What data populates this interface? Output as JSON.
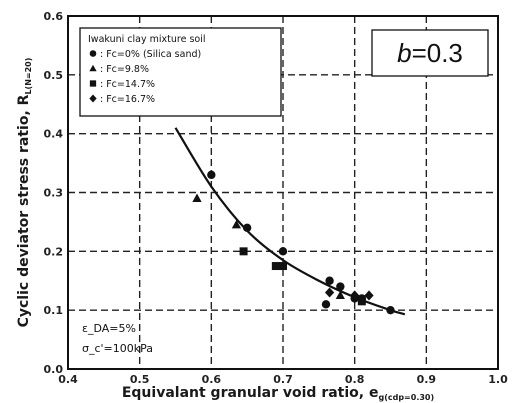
{
  "chart_data": {
    "type": "scatter",
    "xlabel": "Equivalant granular void ratio, e",
    "xlabel_sub": "g(cdp=0.30)",
    "ylabel": "Cyclic deviator stress ratio, R",
    "ylabel_sub": "L(N=20)",
    "xlim": [
      0.4,
      1.0
    ],
    "ylim": [
      0.0,
      0.6
    ],
    "x_ticks": [
      "0.4",
      "0.5",
      "0.6",
      "0.7",
      "0.8",
      "0.9",
      "1.0"
    ],
    "y_ticks": [
      "0.0",
      "0.1",
      "0.2",
      "0.3",
      "0.4",
      "0.5",
      "0.6"
    ],
    "grid": true,
    "legend_position": "top-left",
    "legend_title": "Iwakuni clay mixture soil",
    "annotation": "b=0.3",
    "conditions": [
      "ε_DA=5%",
      "σ_c'=100kPa"
    ],
    "series": [
      {
        "name": ": Fc=0% (Silica sand)",
        "marker": "circle",
        "points": [
          [
            0.6,
            0.33
          ],
          [
            0.65,
            0.24
          ],
          [
            0.7,
            0.2
          ],
          [
            0.76,
            0.11
          ],
          [
            0.765,
            0.15
          ],
          [
            0.78,
            0.14
          ],
          [
            0.8,
            0.12
          ],
          [
            0.81,
            0.12
          ],
          [
            0.85,
            0.1
          ]
        ]
      },
      {
        "name": ": Fc=9.8%",
        "marker": "triangle",
        "points": [
          [
            0.58,
            0.29
          ],
          [
            0.635,
            0.245
          ],
          [
            0.78,
            0.125
          ]
        ]
      },
      {
        "name": ": Fc=14.7%",
        "marker": "square",
        "points": [
          [
            0.645,
            0.2
          ],
          [
            0.69,
            0.175
          ],
          [
            0.7,
            0.175
          ],
          [
            0.81,
            0.115
          ]
        ]
      },
      {
        "name": ": Fc=16.7%",
        "marker": "diamond",
        "points": [
          [
            0.765,
            0.13
          ],
          [
            0.8,
            0.125
          ],
          [
            0.82,
            0.125
          ]
        ]
      }
    ],
    "fit_curve": [
      [
        0.55,
        0.41
      ],
      [
        0.6,
        0.31
      ],
      [
        0.65,
        0.235
      ],
      [
        0.7,
        0.185
      ],
      [
        0.75,
        0.15
      ],
      [
        0.8,
        0.122
      ],
      [
        0.85,
        0.1
      ],
      [
        0.87,
        0.093
      ]
    ]
  }
}
